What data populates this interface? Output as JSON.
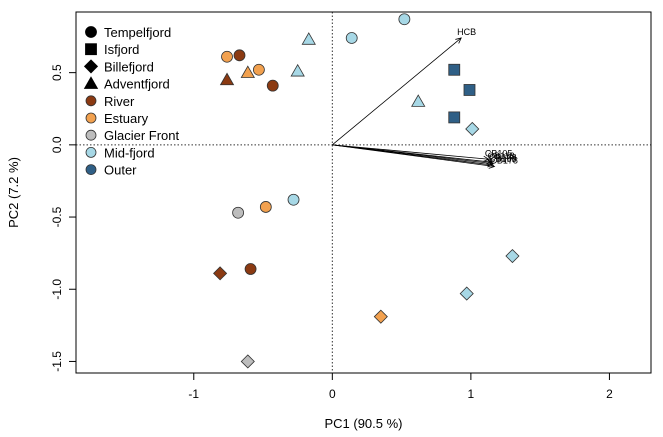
{
  "chart_data": {
    "type": "scatter",
    "xlabel": "PC1 (90.5 %)",
    "ylabel": "PC2 (7.2 %)",
    "xlim": [
      -1.85,
      2.3
    ],
    "ylim": [
      -1.58,
      0.92
    ],
    "xticks": [
      -1,
      0,
      1,
      2
    ],
    "yticks": [
      -1.5,
      -1.0,
      -0.5,
      0.0,
      0.5
    ],
    "xtick_labels": [
      "-1",
      "0",
      "1",
      "2"
    ],
    "ytick_labels": [
      "-1.5",
      "-1.0",
      "-0.5",
      "0.0",
      "0.5"
    ],
    "grid": false,
    "reference_lines": {
      "x": 0,
      "y": 0,
      "style": "dotted"
    },
    "legend": {
      "position": "top-left",
      "shape_entries": [
        {
          "label": "Tempelfjord",
          "shape": "circle"
        },
        {
          "label": "Isfjord",
          "shape": "square"
        },
        {
          "label": "Billefjord",
          "shape": "diamond"
        },
        {
          "label": "Adventfjord",
          "shape": "triangle"
        }
      ],
      "color_entries": [
        {
          "label": "River",
          "color": "#8b3a12"
        },
        {
          "label": "Estuary",
          "color": "#f2a14f"
        },
        {
          "label": "Glacier Front",
          "color": "#bdbdbd"
        },
        {
          "label": "Mid-fjord",
          "color": "#a7d8e6"
        },
        {
          "label": "Outer",
          "color": "#2f5f86"
        }
      ]
    },
    "points": [
      {
        "x": 0.52,
        "y": 0.87,
        "shape": "circle",
        "color": "#a7d8e6"
      },
      {
        "x": 0.14,
        "y": 0.74,
        "shape": "circle",
        "color": "#a7d8e6"
      },
      {
        "x": -0.17,
        "y": 0.73,
        "shape": "triangle",
        "color": "#a7d8e6"
      },
      {
        "x": -0.25,
        "y": 0.51,
        "shape": "triangle",
        "color": "#a7d8e6"
      },
      {
        "x": -0.67,
        "y": 0.62,
        "shape": "circle",
        "color": "#8b3a12"
      },
      {
        "x": -0.76,
        "y": 0.61,
        "shape": "circle",
        "color": "#f2a14f"
      },
      {
        "x": -0.53,
        "y": 0.52,
        "shape": "circle",
        "color": "#f2a14f"
      },
      {
        "x": -0.61,
        "y": 0.5,
        "shape": "triangle",
        "color": "#f2a14f"
      },
      {
        "x": -0.76,
        "y": 0.45,
        "shape": "triangle",
        "color": "#8b3a12"
      },
      {
        "x": -0.43,
        "y": 0.41,
        "shape": "circle",
        "color": "#8b3a12"
      },
      {
        "x": 0.88,
        "y": 0.52,
        "shape": "square",
        "color": "#2f5f86"
      },
      {
        "x": 0.99,
        "y": 0.38,
        "shape": "square",
        "color": "#2f5f86"
      },
      {
        "x": 0.62,
        "y": 0.3,
        "shape": "triangle",
        "color": "#a7d8e6"
      },
      {
        "x": 0.88,
        "y": 0.19,
        "shape": "square",
        "color": "#2f5f86"
      },
      {
        "x": 1.01,
        "y": 0.11,
        "shape": "diamond",
        "color": "#a7d8e6"
      },
      {
        "x": -0.28,
        "y": -0.38,
        "shape": "circle",
        "color": "#a7d8e6"
      },
      {
        "x": -0.48,
        "y": -0.43,
        "shape": "circle",
        "color": "#f2a14f"
      },
      {
        "x": -0.68,
        "y": -0.47,
        "shape": "circle",
        "color": "#bdbdbd"
      },
      {
        "x": 1.3,
        "y": -0.77,
        "shape": "diamond",
        "color": "#a7d8e6"
      },
      {
        "x": -0.59,
        "y": -0.86,
        "shape": "circle",
        "color": "#8b3a12"
      },
      {
        "x": -0.81,
        "y": -0.89,
        "shape": "diamond",
        "color": "#8b3a12"
      },
      {
        "x": 0.97,
        "y": -1.03,
        "shape": "diamond",
        "color": "#a7d8e6"
      },
      {
        "x": 0.35,
        "y": -1.19,
        "shape": "diamond",
        "color": "#f2a14f"
      },
      {
        "x": -0.61,
        "y": -1.5,
        "shape": "diamond",
        "color": "#bdbdbd"
      }
    ],
    "vectors": [
      {
        "label": "HCB",
        "x": 0.93,
        "y": 0.74
      },
      {
        "label": "CB105",
        "x": 1.13,
        "y": -0.1
      },
      {
        "label": "CB118",
        "x": 1.15,
        "y": -0.12
      },
      {
        "label": "CB138",
        "x": 1.16,
        "y": -0.13
      },
      {
        "label": "CB153",
        "x": 1.16,
        "y": -0.14
      },
      {
        "label": "CB178",
        "x": 1.17,
        "y": -0.15
      }
    ]
  }
}
